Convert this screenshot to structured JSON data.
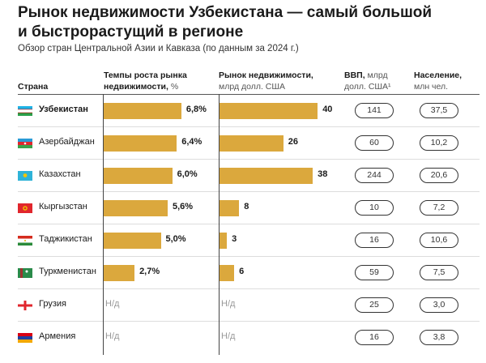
{
  "title": "Рынок недвижимости Узбекистана — самый большой и быстрорастущий в регионе",
  "title_line1": "Рынок недвижимости Узбекистана — самый большой",
  "title_line2": "и быстрорастущий в регионе",
  "subtitle": "Обзор стран Центральной Азии и Кавказа (по данным за 2024 г.)",
  "columns": {
    "country": "Страна",
    "growth_bold": "Темпы роста рынка недвижимости,",
    "growth_unit": " %",
    "market_bold": "Рынок недвижимости,",
    "market_unit": "млрд долл. США",
    "gdp_bold": "ВВП,",
    "gdp_unit1": " млрд",
    "gdp_unit2": "долл. США¹",
    "pop_bold": "Население,",
    "pop_unit": "млн чел."
  },
  "bar_color": "#dba83d",
  "chart_data": {
    "type": "table",
    "countries": [
      "Узбекистан",
      "Азербайджан",
      "Казахстан",
      "Кыргызстан",
      "Таджикистан",
      "Туркменистан",
      "Грузия",
      "Армения"
    ],
    "rows": [
      {
        "country": "Узбекистан",
        "flag": "uzbekistan-flag",
        "growth": 6.8,
        "growth_label": "6,8%",
        "market": 40,
        "market_label": "40",
        "gdp": "141",
        "population": "37,5"
      },
      {
        "country": "Азербайджан",
        "flag": "azerbaijan-flag",
        "growth": 6.4,
        "growth_label": "6,4%",
        "market": 26,
        "market_label": "26",
        "gdp": "60",
        "population": "10,2"
      },
      {
        "country": "Казахстан",
        "flag": "kazakhstan-flag",
        "growth": 6.0,
        "growth_label": "6,0%",
        "market": 38,
        "market_label": "38",
        "gdp": "244",
        "population": "20,6"
      },
      {
        "country": "Кыргызстан",
        "flag": "kyrgyzstan-flag",
        "growth": 5.6,
        "growth_label": "5,6%",
        "market": 8,
        "market_label": "8",
        "gdp": "10",
        "population": "7,2"
      },
      {
        "country": "Таджикистан",
        "flag": "tajikistan-flag",
        "growth": 5.0,
        "growth_label": "5,0%",
        "market": 3,
        "market_label": "3",
        "gdp": "16",
        "population": "10,6"
      },
      {
        "country": "Туркменистан",
        "flag": "turkmenistan-flag",
        "growth": 2.7,
        "growth_label": "2,7%",
        "market": 6,
        "market_label": "6",
        "gdp": "59",
        "population": "7,5"
      },
      {
        "country": "Грузия",
        "flag": "georgia-flag",
        "growth": null,
        "growth_label": "Н/д",
        "market": null,
        "market_label": "Н/д",
        "gdp": "25",
        "population": "3,0"
      },
      {
        "country": "Армения",
        "flag": "armenia-flag",
        "growth": null,
        "growth_label": "Н/д",
        "market": null,
        "market_label": "Н/д",
        "gdp": "16",
        "population": "3,8"
      }
    ]
  }
}
